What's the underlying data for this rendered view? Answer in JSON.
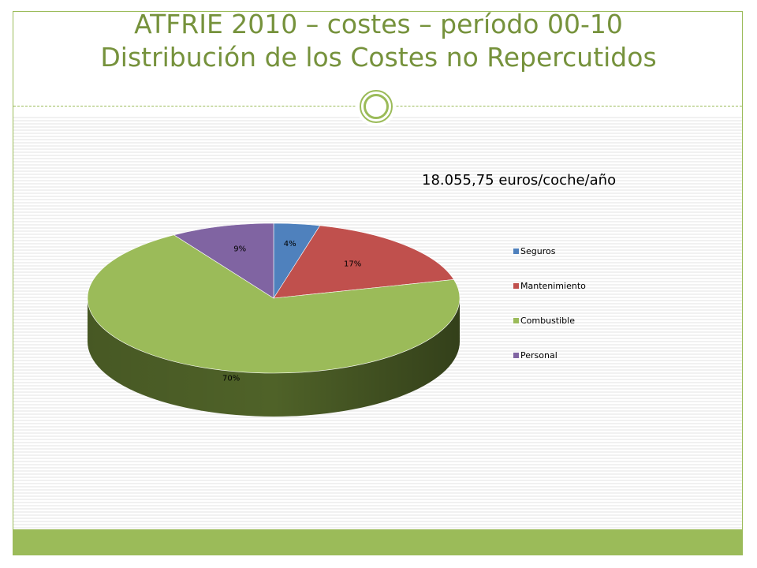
{
  "slide": {
    "title_line1": "ATFRIE 2010 – costes – período 00-10",
    "title_line2": "Distribución de los Costes no Repercutidos",
    "subtitle": "18.055,75 euros/coche/año"
  },
  "colors": {
    "accent": "#9bbb59",
    "title": "#76923c"
  },
  "chart_data": {
    "type": "pie",
    "style": "3d",
    "categories": [
      "Seguros",
      "Mantenimiento",
      "Combustible",
      "Personal"
    ],
    "values": [
      4,
      17,
      70,
      9
    ],
    "labels": [
      "4%",
      "17%",
      "70%",
      "9%"
    ],
    "colors": [
      "#4f81bd",
      "#c0504d",
      "#9bbb59",
      "#8064a2"
    ],
    "side_colors": [
      "#2c4d75",
      "#772c2a",
      "#4f6228",
      "#4d3b62"
    ],
    "legend": {
      "position": "right",
      "entries": [
        "Seguros",
        "Mantenimiento",
        "Combustible",
        "Personal"
      ]
    }
  }
}
